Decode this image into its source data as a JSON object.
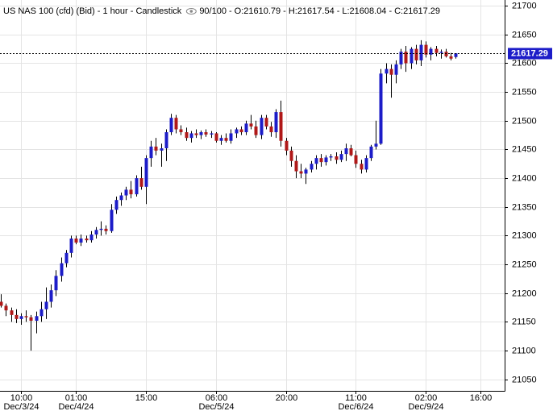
{
  "chart_data": {
    "type": "candlestick",
    "title": "US NAS 100 (cfd) (Bid) - 1 hour - Candlestick",
    "zoom": "90/100",
    "ohlc_labels": [
      "O:21610.79",
      "H:21617.54",
      "L:21608.04",
      "C:21617.29"
    ],
    "categories": [
      null,
      null,
      null,
      null,
      "10:00",
      null,
      null,
      null,
      null,
      null,
      null,
      null,
      null,
      null,
      null,
      "01:00",
      null,
      null,
      null,
      null,
      null,
      null,
      null,
      null,
      null,
      null,
      null,
      null,
      null,
      "15:00",
      null,
      null,
      null,
      null,
      null,
      null,
      null,
      null,
      null,
      null,
      null,
      null,
      null,
      "06:00",
      null,
      null,
      null,
      null,
      null,
      null,
      null,
      null,
      null,
      null,
      null,
      null,
      null,
      "20:00",
      null,
      null,
      null,
      null,
      null,
      null,
      null,
      null,
      null,
      null,
      null,
      null,
      null,
      "11:00",
      null,
      null,
      null,
      null,
      null,
      null,
      null,
      null,
      null,
      null,
      null,
      null,
      null,
      "02:00",
      null,
      null,
      null,
      null,
      null,
      null,
      null,
      null,
      null,
      null,
      "16:00",
      null,
      null,
      null,
      null
    ],
    "date_labels": [
      null,
      null,
      null,
      null,
      "Dec/3/24",
      null,
      null,
      null,
      null,
      null,
      null,
      null,
      null,
      null,
      null,
      "Dec/4/24",
      null,
      null,
      null,
      null,
      null,
      null,
      null,
      null,
      null,
      null,
      null,
      null,
      null,
      null,
      null,
      null,
      null,
      null,
      null,
      null,
      null,
      null,
      null,
      null,
      null,
      null,
      null,
      "Dec/5/24",
      null,
      null,
      null,
      null,
      null,
      null,
      null,
      null,
      null,
      null,
      null,
      null,
      null,
      null,
      null,
      null,
      null,
      null,
      null,
      null,
      null,
      null,
      null,
      null,
      null,
      null,
      null,
      "Dec/6/24",
      null,
      null,
      null,
      null,
      null,
      null,
      null,
      null,
      null,
      null,
      null,
      null,
      null,
      "Dec/9/24",
      null,
      null,
      null,
      null,
      null,
      null,
      null,
      null,
      null,
      null,
      null,
      null,
      null,
      null,
      null,
      null
    ],
    "open": [
      21185,
      21178,
      21170,
      21162,
      21155,
      21160,
      21158,
      21152,
      21160,
      21172,
      21185,
      21205,
      21230,
      21252,
      21270,
      21295,
      21288,
      21295,
      21292,
      21302,
      21310,
      21312,
      21308,
      21345,
      21362,
      21370,
      21380,
      21372,
      21400,
      21385,
      21435,
      21455,
      21448,
      21452,
      21480,
      21505,
      21485,
      21480,
      21470,
      21478,
      21475,
      21480,
      21476,
      21478,
      21465,
      21470,
      21465,
      21478,
      21485,
      21480,
      21495,
      21490,
      21475,
      21505,
      21490,
      21480,
      21515,
      21465,
      21448,
      21430,
      21412,
      21408,
      21415,
      21425,
      21435,
      21428,
      21436,
      21438,
      21432,
      21442,
      21452,
      21440,
      21425,
      21415,
      21435,
      21455,
      21460,
      21582,
      21590,
      21580,
      21598,
      21620,
      21600,
      21625,
      21605,
      21632,
      21615,
      21625,
      21618,
      21620,
      21612,
      21610.79,
      null,
      null,
      null,
      null,
      null,
      null,
      null,
      null,
      null
    ],
    "high": [
      21198,
      21182,
      21175,
      21172,
      21165,
      21170,
      21162,
      21168,
      21185,
      21210,
      21215,
      21240,
      21262,
      21275,
      21300,
      21300,
      21302,
      21300,
      21308,
      21315,
      21325,
      21318,
      21355,
      21368,
      21375,
      21385,
      21395,
      21405,
      21420,
      21440,
      21465,
      21470,
      21460,
      21485,
      21512,
      21510,
      21492,
      21488,
      21482,
      21485,
      21483,
      21485,
      21482,
      21480,
      21475,
      21478,
      21485,
      21488,
      21490,
      21500,
      21510,
      21500,
      21510,
      21510,
      21498,
      21520,
      21535,
      21470,
      21455,
      21440,
      21425,
      21418,
      21430,
      21440,
      21442,
      21440,
      21442,
      21445,
      21448,
      21460,
      21458,
      21448,
      21432,
      21440,
      21458,
      21500,
      21590,
      21600,
      21598,
      21605,
      21625,
      21630,
      21628,
      21632,
      21640,
      21638,
      21628,
      21630,
      21624,
      21625,
      21618,
      21617.54,
      null,
      null,
      null,
      null,
      null,
      null,
      null,
      null,
      null
    ],
    "low": [
      21175,
      21160,
      21150,
      21148,
      21145,
      21150,
      21100,
      21130,
      21150,
      21155,
      21175,
      21195,
      21220,
      21245,
      21262,
      21285,
      21282,
      21288,
      21288,
      21295,
      21300,
      21302,
      21305,
      21338,
      21352,
      21362,
      21365,
      21368,
      21380,
      21355,
      21420,
      21440,
      21420,
      21430,
      21475,
      21478,
      21475,
      21465,
      21462,
      21470,
      21468,
      21472,
      21470,
      21462,
      21458,
      21462,
      21460,
      21470,
      21475,
      21475,
      21485,
      21470,
      21468,
      21485,
      21472,
      21470,
      21455,
      21440,
      21420,
      21400,
      21400,
      21390,
      21410,
      21415,
      21420,
      21422,
      21430,
      21425,
      21428,
      21430,
      21438,
      21418,
      21408,
      21410,
      21430,
      21450,
      21458,
      21565,
      21540,
      21565,
      21590,
      21585,
      21590,
      21598,
      21595,
      21610,
      21605,
      21612,
      21608,
      21610,
      21605,
      21608.04,
      null,
      null,
      null,
      null,
      null,
      null,
      null,
      null,
      null
    ],
    "close": [
      21178,
      21170,
      21162,
      21155,
      21160,
      21158,
      21152,
      21160,
      21172,
      21185,
      21205,
      21230,
      21252,
      21270,
      21295,
      21288,
      21295,
      21292,
      21302,
      21310,
      21312,
      21308,
      21345,
      21362,
      21370,
      21380,
      21372,
      21400,
      21385,
      21435,
      21455,
      21448,
      21452,
      21480,
      21505,
      21485,
      21480,
      21470,
      21478,
      21475,
      21480,
      21476,
      21478,
      21465,
      21470,
      21465,
      21478,
      21485,
      21480,
      21495,
      21490,
      21475,
      21505,
      21490,
      21480,
      21515,
      21465,
      21448,
      21430,
      21412,
      21408,
      21415,
      21425,
      21435,
      21428,
      21436,
      21438,
      21432,
      21442,
      21452,
      21440,
      21425,
      21415,
      21435,
      21455,
      21460,
      21582,
      21590,
      21580,
      21598,
      21620,
      21600,
      21625,
      21605,
      21632,
      21615,
      21625,
      21618,
      21620,
      21612,
      21608,
      21617.29,
      null,
      null,
      null,
      null,
      null,
      null,
      null,
      null,
      null
    ],
    "up_color": "#1c1cc8",
    "down_color": "#b01818",
    "wick_color": "#000000",
    "ylim": [
      21030,
      21710
    ],
    "yticks": [
      21050,
      21100,
      21150,
      21200,
      21250,
      21300,
      21350,
      21400,
      21450,
      21500,
      21550,
      21600,
      21650,
      21700
    ],
    "grid": true,
    "last_price": {
      "value": 21617.29,
      "label": "21617.29"
    },
    "last_price_color": "#1c1cc8"
  }
}
